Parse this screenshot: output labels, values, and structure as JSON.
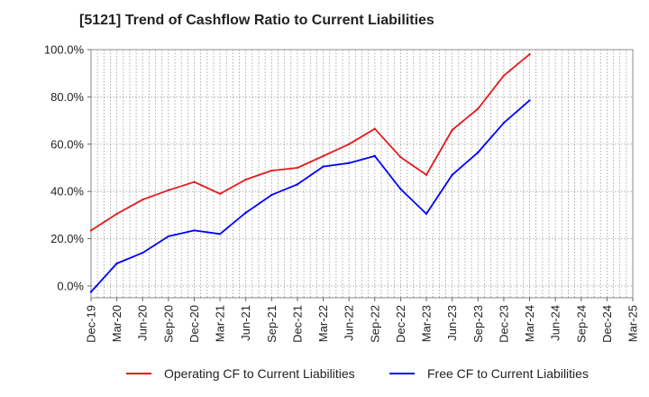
{
  "chart_data": {
    "type": "line",
    "title": "[5121]  Trend of Cashflow Ratio to Current Liabilities",
    "xlabel": "",
    "ylabel": "",
    "categories": [
      "Dec-19",
      "Mar-20",
      "Jun-20",
      "Sep-20",
      "Dec-20",
      "Mar-21",
      "Jun-21",
      "Sep-21",
      "Dec-21",
      "Mar-22",
      "Jun-22",
      "Sep-22",
      "Dec-22",
      "Mar-23",
      "Jun-23",
      "Sep-23",
      "Dec-23",
      "Mar-24",
      "Jun-24",
      "Sep-24",
      "Dec-24",
      "Mar-25"
    ],
    "ylim": [
      -5,
      100
    ],
    "yticks": [
      0,
      20,
      40,
      60,
      80,
      100
    ],
    "ytick_labels": [
      "0.0%",
      "20.0%",
      "40.0%",
      "60.0%",
      "80.0%",
      "100.0%"
    ],
    "grid": true,
    "legend_position": "bottom",
    "series": [
      {
        "name": "Operating CF to Current Liabilities",
        "color": "#e31a1c",
        "values": [
          23.5,
          30.5,
          36.5,
          40.5,
          44.0,
          39.0,
          45.0,
          48.8,
          50.0,
          55.0,
          60.0,
          66.5,
          54.5,
          47.0,
          66.0,
          75.0,
          89.0,
          98.0,
          null,
          null,
          null,
          null
        ]
      },
      {
        "name": "Free CF to Current Liabilities",
        "color": "#0000ff",
        "values": [
          -2.5,
          9.5,
          14.0,
          21.0,
          23.5,
          22.0,
          31.0,
          38.5,
          43.0,
          50.5,
          52.0,
          55.0,
          41.0,
          30.5,
          47.0,
          56.5,
          69.0,
          78.5,
          null,
          null,
          null,
          null
        ]
      }
    ]
  }
}
